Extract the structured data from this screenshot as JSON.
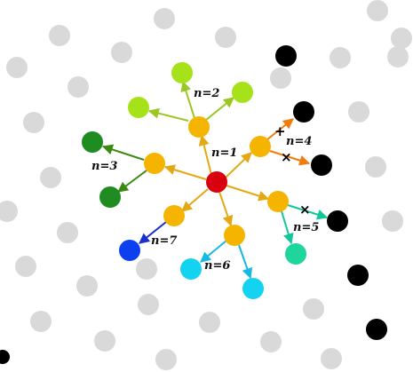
{
  "colors": {
    "background_dot": "#d9d9d9",
    "black_dot": "#000000",
    "center": "#d9000f",
    "first_ring": "#f4b400",
    "level2_lime": "#a6e21a",
    "level2_green": "#1f8c21",
    "n4_arrow": "#f07c0c",
    "n5_node": "#1ed69b",
    "n5_arrow": "#14c79a",
    "n6_node": "#14d3f0",
    "n6_arrow": "#14b9e6",
    "n7_node": "#0b3ff0",
    "n7_arrow": "#1a2fd0",
    "n1_arrow": "#e3a814",
    "n2_arrow": "#9cc722",
    "n3_arrow": "#3a8a10"
  },
  "labels": {
    "n1": "n=1",
    "n2": "n=2",
    "n3": "n=3",
    "n4": "n=4",
    "n5": "n=5",
    "n6": "n=6",
    "n7": "n=7"
  },
  "marks": {
    "plus": "+",
    "cross": "×"
  },
  "nodes": {
    "center": "center-node",
    "ring": [
      "ring-node-n1-upper",
      "ring-node-n2",
      "ring-node-n3",
      "ring-node-n4",
      "ring-node-n5",
      "ring-node-n6",
      "ring-node-n7"
    ],
    "leaves": [
      "leaf-n2-left",
      "leaf-n2-top",
      "leaf-n2-right",
      "leaf-n3-top",
      "leaf-n3-bottom",
      "leaf-n5",
      "leaf-n6-left",
      "leaf-n6-right",
      "leaf-n7"
    ]
  }
}
